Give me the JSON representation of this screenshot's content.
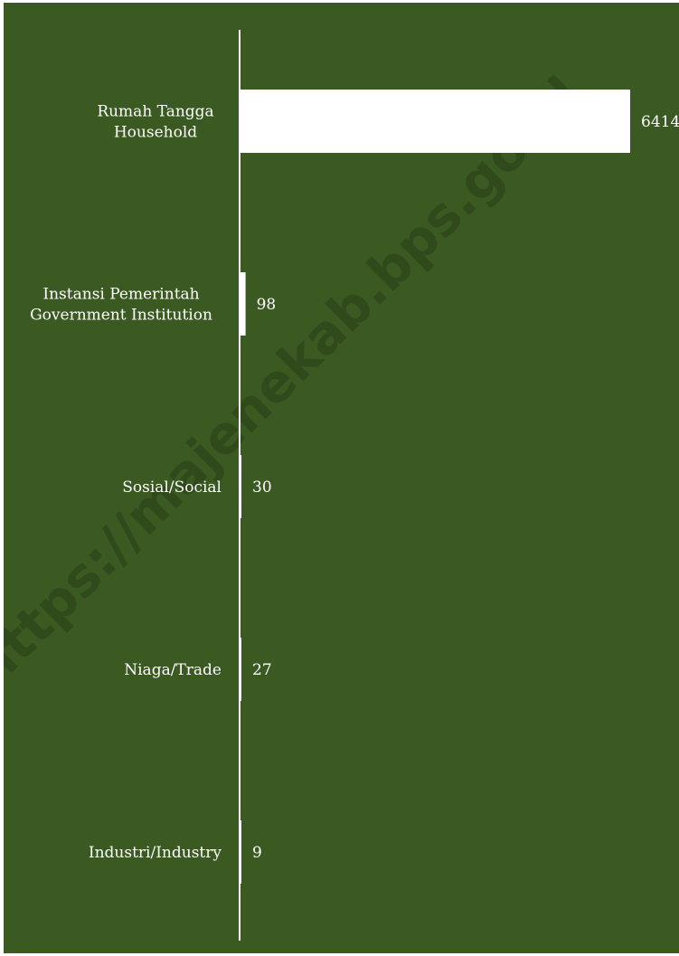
{
  "chart_data": {
    "type": "bar",
    "orientation": "horizontal",
    "categories": [
      [
        "Rumah Tangga",
        "Household"
      ],
      [
        "Instansi Pemerintah",
        "Government Institution"
      ],
      [
        "Sosial/Social"
      ],
      [
        "Niaga/Trade"
      ],
      [
        "Industri/Industry"
      ]
    ],
    "values": [
      6414,
      98,
      30,
      27,
      9
    ],
    "xlim": [
      0,
      6414
    ],
    "grid": false,
    "legend": "none",
    "colors": {
      "background": "#3a5a22",
      "bar": "#ffffff",
      "text": "#ffffff",
      "axis": "#ffffff"
    }
  },
  "watermark": "https://majenekab.bps.go.id"
}
